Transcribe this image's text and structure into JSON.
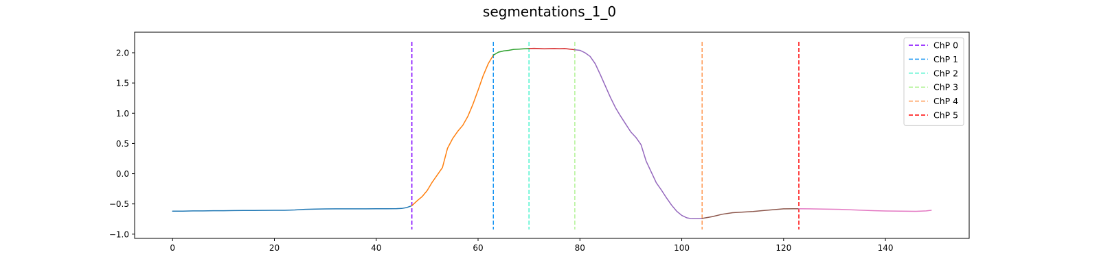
{
  "chart_data": {
    "type": "line",
    "title": "segmentations_1_0",
    "xlabel": "",
    "ylabel": "",
    "xlim": [
      -7.45,
      156.45
    ],
    "ylim": [
      -1.07,
      2.34
    ],
    "xticks": [
      0,
      20,
      40,
      60,
      80,
      100,
      120,
      140
    ],
    "yticks": [
      -1.0,
      -0.5,
      0.0,
      0.5,
      1.0,
      1.5,
      2.0
    ],
    "ytick_labels": [
      "−1.0",
      "−0.5",
      "0.0",
      "0.5",
      "1.0",
      "1.5",
      "2.0"
    ],
    "grid": false,
    "legend_position": "top-right",
    "series": [
      {
        "color": "#1f77b4",
        "x": [
          0,
          2,
          4,
          6,
          8,
          10,
          12,
          14,
          16,
          18,
          20,
          22,
          24,
          26,
          28,
          30,
          32,
          34,
          36,
          38,
          40,
          42,
          44,
          45,
          46,
          47
        ],
        "y": [
          -0.62,
          -0.62,
          -0.615,
          -0.615,
          -0.613,
          -0.612,
          -0.61,
          -0.608,
          -0.608,
          -0.607,
          -0.606,
          -0.605,
          -0.6,
          -0.59,
          -0.585,
          -0.583,
          -0.582,
          -0.582,
          -0.581,
          -0.581,
          -0.58,
          -0.58,
          -0.578,
          -0.575,
          -0.56,
          -0.53
        ]
      },
      {
        "color": "#ff7f0e",
        "x": [
          47,
          48,
          49,
          50,
          51,
          52,
          53,
          54,
          55,
          56,
          57,
          58,
          59,
          60,
          61,
          62,
          63
        ],
        "y": [
          -0.53,
          -0.45,
          -0.38,
          -0.28,
          -0.14,
          -0.02,
          0.1,
          0.42,
          0.58,
          0.7,
          0.8,
          0.95,
          1.15,
          1.38,
          1.62,
          1.82,
          1.96
        ]
      },
      {
        "color": "#2ca02c",
        "x": [
          63,
          64,
          65,
          66,
          67,
          68,
          69,
          70
        ],
        "y": [
          1.96,
          2.01,
          2.03,
          2.04,
          2.055,
          2.06,
          2.065,
          2.07
        ]
      },
      {
        "color": "#d62728",
        "x": [
          70,
          71,
          72,
          73,
          74,
          75,
          76,
          77,
          78,
          79
        ],
        "y": [
          2.07,
          2.072,
          2.07,
          2.065,
          2.068,
          2.07,
          2.067,
          2.07,
          2.06,
          2.05
        ]
      },
      {
        "color": "#9467bd",
        "x": [
          79,
          80,
          81,
          82,
          83,
          84,
          85,
          86,
          87,
          88,
          89,
          90,
          91,
          92,
          93,
          94,
          95,
          96,
          97,
          98,
          99,
          100,
          101,
          102,
          103,
          104
        ],
        "y": [
          2.05,
          2.04,
          2.0,
          1.94,
          1.82,
          1.64,
          1.45,
          1.26,
          1.09,
          0.95,
          0.82,
          0.69,
          0.6,
          0.48,
          0.21,
          0.03,
          -0.15,
          -0.27,
          -0.4,
          -0.52,
          -0.62,
          -0.69,
          -0.73,
          -0.745,
          -0.745,
          -0.74
        ]
      },
      {
        "color": "#8c564b",
        "x": [
          104,
          106,
          108,
          110,
          112,
          114,
          116,
          118,
          120,
          122,
          123
        ],
        "y": [
          -0.74,
          -0.71,
          -0.67,
          -0.645,
          -0.635,
          -0.625,
          -0.61,
          -0.595,
          -0.582,
          -0.58,
          -0.58
        ]
      },
      {
        "color": "#e377c2",
        "x": [
          123,
          125,
          128,
          131,
          134,
          137,
          140,
          143,
          146,
          148,
          149
        ],
        "y": [
          -0.58,
          -0.582,
          -0.585,
          -0.59,
          -0.6,
          -0.61,
          -0.617,
          -0.62,
          -0.622,
          -0.615,
          -0.605
        ]
      }
    ],
    "changepoints": [
      {
        "label": "ChP 0",
        "x": 47,
        "color": "#8000ff"
      },
      {
        "label": "ChP 1",
        "x": 63,
        "color": "#1996f3"
      },
      {
        "label": "ChP 2",
        "x": 70,
        "color": "#4df3ce"
      },
      {
        "label": "ChP 3",
        "x": 79,
        "color": "#b2f396"
      },
      {
        "label": "ChP 4",
        "x": 104,
        "color": "#ff964f"
      },
      {
        "label": "ChP 5",
        "x": 123,
        "color": "#ff0000"
      }
    ]
  }
}
